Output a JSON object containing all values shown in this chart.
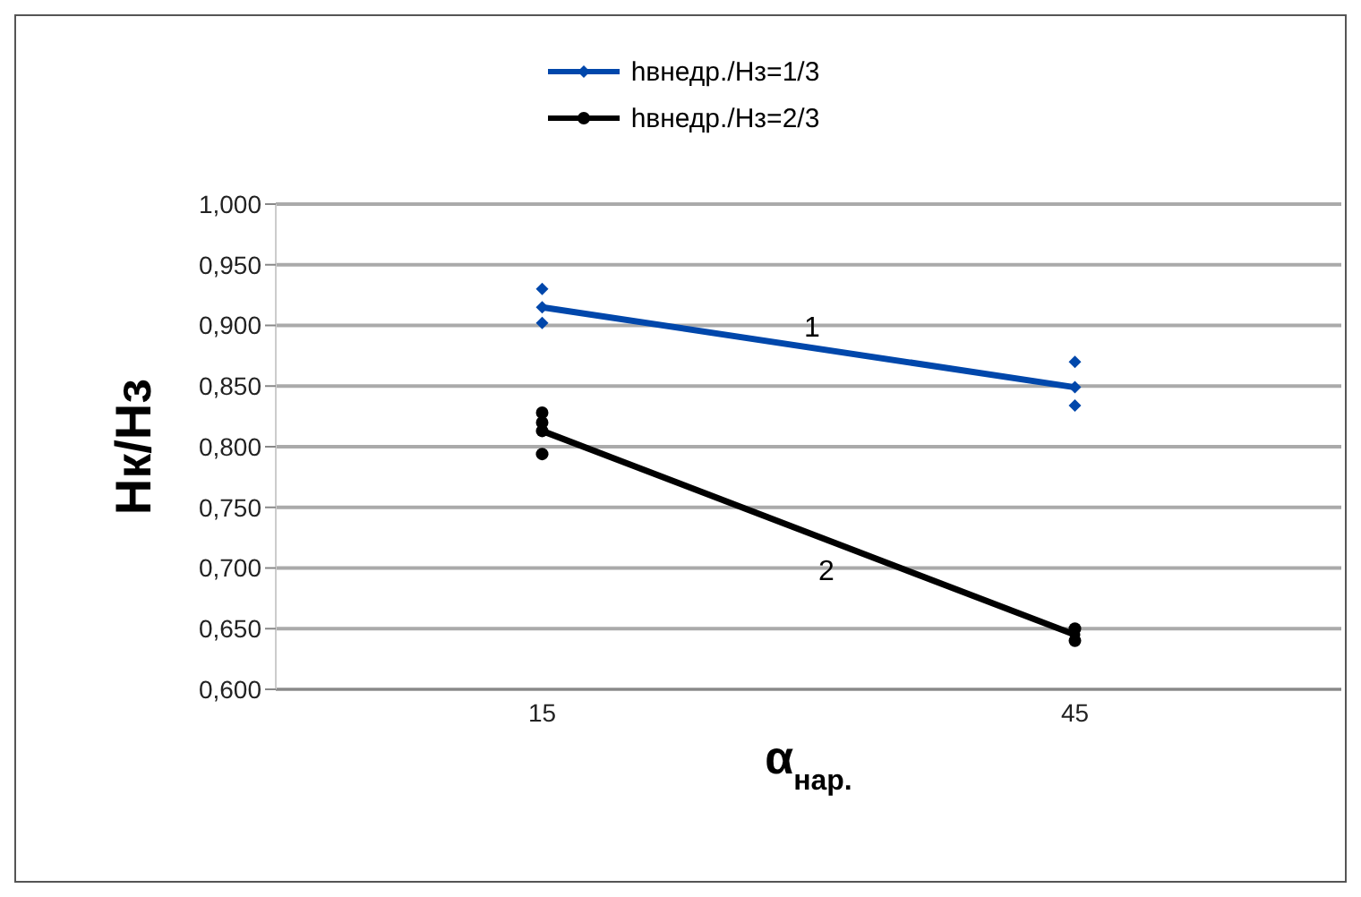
{
  "chart_data": {
    "type": "line",
    "xlabel": "α$_{нар.}$",
    "ylabel": "Нк/Нз",
    "categories": [
      "15",
      "45"
    ],
    "series": [
      {
        "name": "hвнедр./Нз=1/3",
        "color": "#0047ab",
        "values": [
          0.915,
          0.849
        ],
        "marker": "diamond"
      },
      {
        "name": "hвнедр./Нз=2/3",
        "color": "#000000",
        "values": [
          0.813,
          0.645
        ],
        "marker": "circle"
      },
      {
        "type": "scatter",
        "color": "#0047ab",
        "marker": "diamond",
        "x": [
          "15",
          "15",
          "15",
          "45",
          "45",
          "45"
        ],
        "values": [
          0.93,
          0.915,
          0.902,
          0.87,
          0.849,
          0.834
        ]
      },
      {
        "type": "scatter",
        "color": "#000000",
        "marker": "circle",
        "x": [
          "15",
          "15",
          "15",
          "15",
          "45",
          "45",
          "45"
        ],
        "values": [
          0.828,
          0.82,
          0.813,
          0.794,
          0.65,
          null,
          0.64
        ]
      }
    ],
    "ylim": [
      0.6,
      1.0
    ],
    "yticks": [
      {
        "value": 0.6,
        "label": "0,600"
      },
      {
        "value": 0.65,
        "label": "0,650"
      },
      {
        "value": 0.7,
        "label": "0,700"
      },
      {
        "value": 0.75,
        "label": "0,750"
      },
      {
        "value": 0.8,
        "label": "0,800"
      },
      {
        "value": 0.85,
        "label": "0,850"
      },
      {
        "value": 0.9,
        "label": "0,900"
      },
      {
        "value": 0.95,
        "label": "0,950"
      },
      {
        "value": 1.0,
        "label": "1,000"
      }
    ],
    "grid": "y",
    "legend": "top",
    "line_style": "solid",
    "annotations": [
      "1",
      "2"
    ]
  }
}
